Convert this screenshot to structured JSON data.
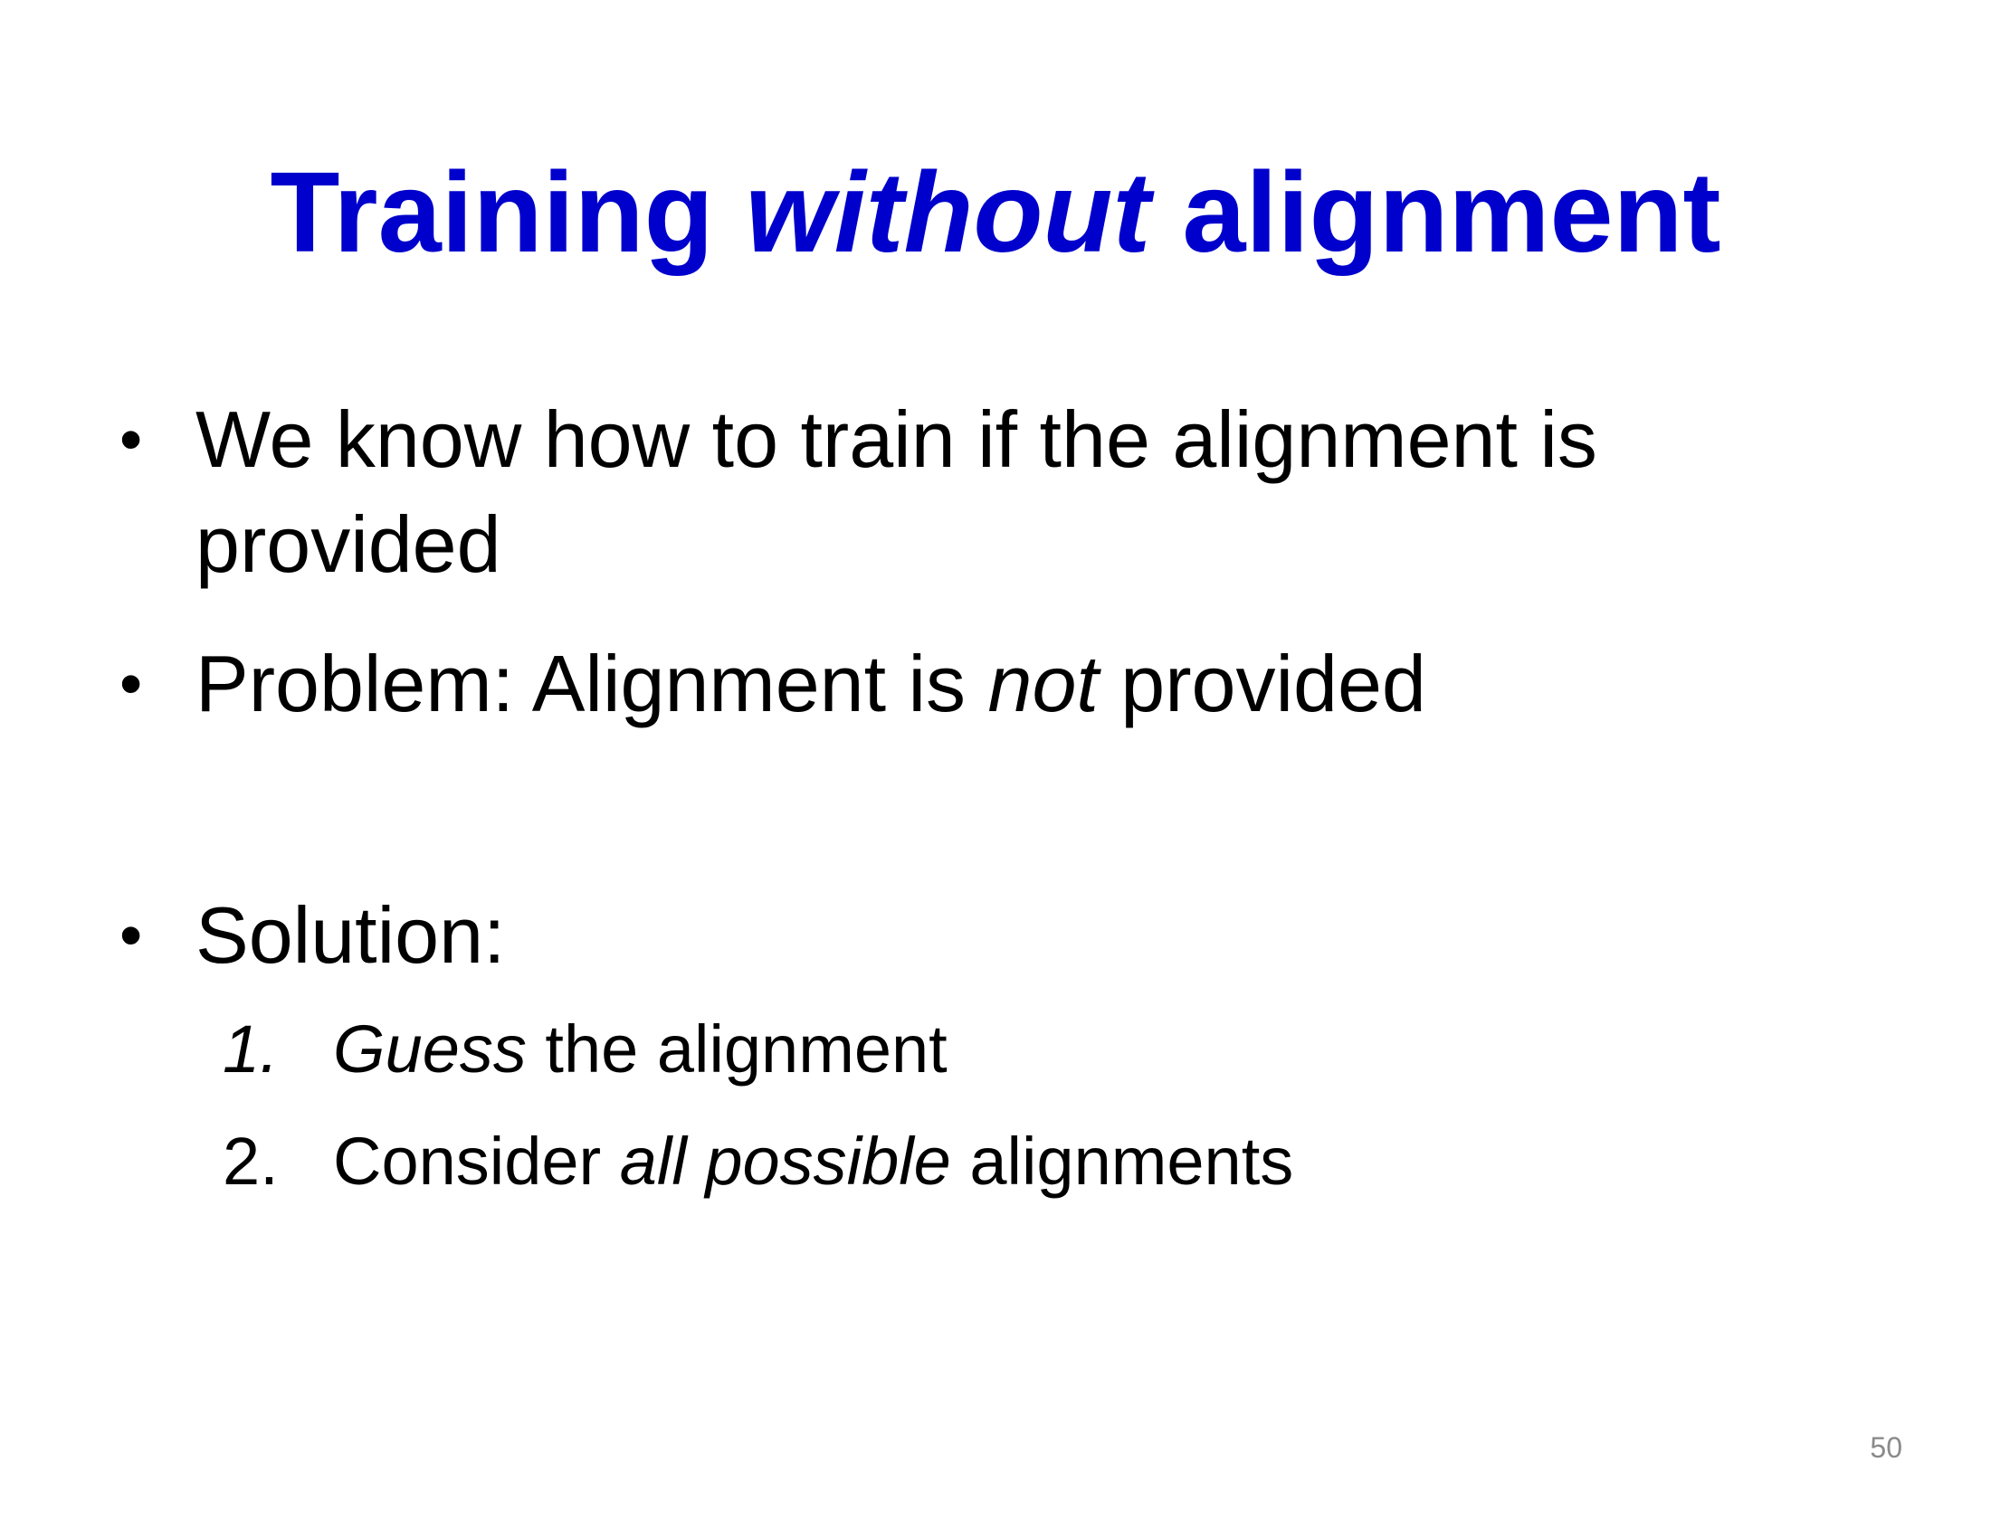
{
  "slide": {
    "title": {
      "before": "Training ",
      "emphasis": "without",
      "after": " alignment"
    },
    "bullets": [
      {
        "marker": "•",
        "line1": "We know how to train if the alignment is",
        "line2": "provided"
      },
      {
        "marker": "•",
        "before": "Problem:  Alignment is ",
        "emphasis": "not",
        "after": " provided"
      },
      {
        "marker": "•",
        "text": "Solution:"
      }
    ],
    "solutions": [
      {
        "number": "1.",
        "emphasis": "Guess",
        "after": " the alignment"
      },
      {
        "number": "2.",
        "before": "Consider ",
        "emphasis": "all possible",
        "after": " alignments"
      }
    ],
    "page_number": "50"
  },
  "colors": {
    "title": "#0000cc",
    "body_text": "#000000",
    "page_number": "#8a8a8a",
    "background": "#ffffff"
  }
}
